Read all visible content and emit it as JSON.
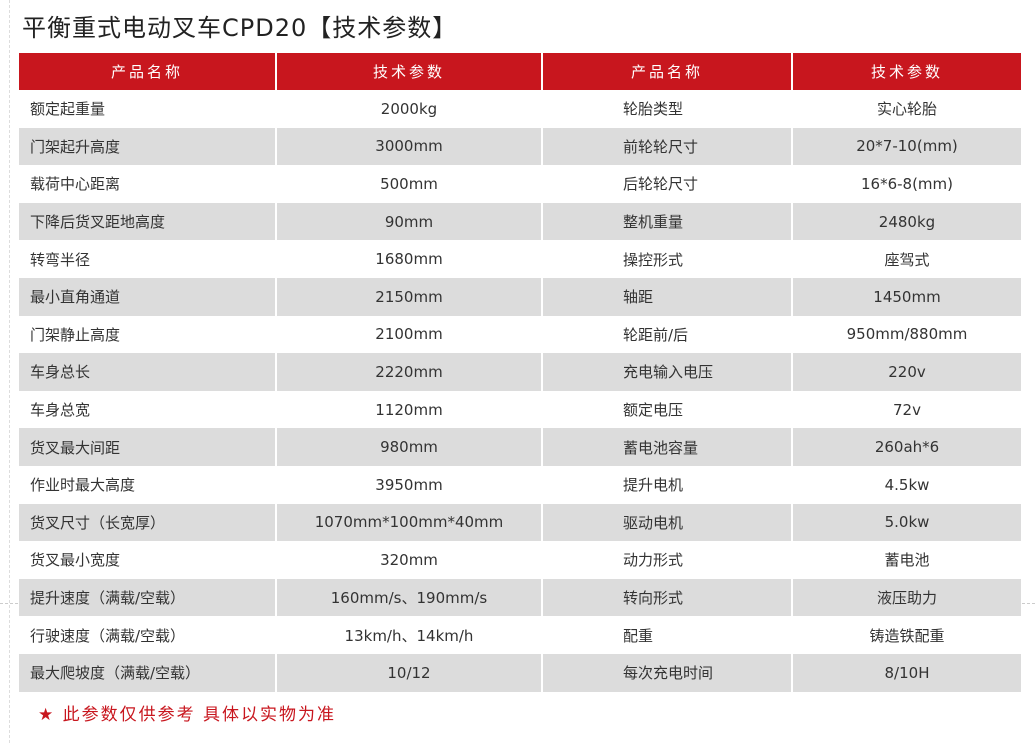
{
  "title": "平衡重式电动叉车CPD20【技术参数】",
  "colors": {
    "header": "#c8161e",
    "alt_row": "#dcdcdc",
    "note": "#c8161e"
  },
  "headers": [
    "产品名称",
    "技术参数",
    "产品名称",
    "技术参数"
  ],
  "rows": [
    [
      "额定起重量",
      "2000kg",
      "轮胎类型",
      "实心轮胎"
    ],
    [
      "门架起升高度",
      "3000mm",
      "前轮轮尺寸",
      "20*7-10(mm)"
    ],
    [
      "载荷中心距离",
      "500mm",
      "后轮轮尺寸",
      "16*6-8(mm)"
    ],
    [
      "下降后货叉距地高度",
      "90mm",
      "整机重量",
      "2480kg"
    ],
    [
      "转弯半径",
      "1680mm",
      "操控形式",
      "座驾式"
    ],
    [
      "最小直角通道",
      "2150mm",
      "轴距",
      "1450mm"
    ],
    [
      "门架静止高度",
      "2100mm",
      "轮距前/后",
      "950mm/880mm"
    ],
    [
      "车身总长",
      "2220mm",
      "充电输入电压",
      "220v"
    ],
    [
      "车身总宽",
      "1120mm",
      "额定电压",
      "72v"
    ],
    [
      "货叉最大间距",
      "980mm",
      "蓄电池容量",
      "260ah*6"
    ],
    [
      "作业时最大高度",
      "3950mm",
      "提升电机",
      "4.5kw"
    ],
    [
      "货叉尺寸（长宽厚）",
      "1070mm*100mm*40mm",
      "驱动电机",
      "5.0kw"
    ],
    [
      "货叉最小宽度",
      "320mm",
      "动力形式",
      "蓄电池"
    ],
    [
      "提升速度（满载/空载）",
      "160mm/s、190mm/s",
      "转向形式",
      "液压助力"
    ],
    [
      "行驶速度（满载/空载）",
      "13km/h、14km/h",
      "配重",
      "铸造铁配重"
    ],
    [
      "最大爬坡度（满载/空载）",
      "10/12",
      "每次充电时间",
      "8/10H"
    ]
  ],
  "note_icon": "star-icon",
  "note_star": "★",
  "note": "此参数仅供参考 具体以实物为准"
}
